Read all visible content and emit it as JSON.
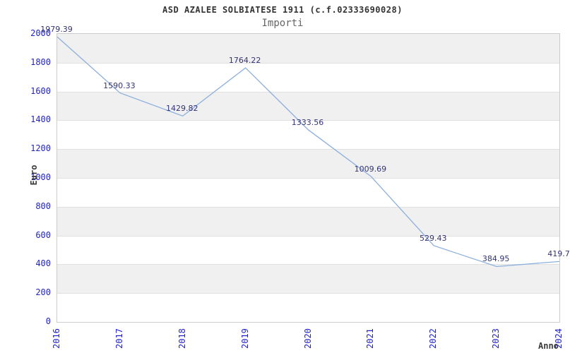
{
  "header": {
    "title": "ASD AZALEE SOLBIATESE 1911 (c.f.02333690028)",
    "subtitle": "Importi"
  },
  "chart_data": {
    "type": "line",
    "title": "ASD AZALEE SOLBIATESE 1911 (c.f.02333690028)",
    "subtitle": "Importi",
    "categories": [
      "2016",
      "2017",
      "2018",
      "2019",
      "2020",
      "2021",
      "2022",
      "2023",
      "2024"
    ],
    "values": [
      1979.39,
      1590.33,
      1429.82,
      1764.22,
      1333.56,
      1009.69,
      529.43,
      384.95,
      419.7
    ],
    "value_labels": [
      "1979.39",
      "1590.33",
      "1429.82",
      "1764.22",
      "1333.56",
      "1009.69",
      "529.43",
      "384.95",
      "419.7"
    ],
    "xlabel": "Anno",
    "ylabel": "Euro",
    "ylim": [
      0,
      2000
    ],
    "ytick_step": 200,
    "grid": "horizontal-bands-alternating",
    "legend": "none",
    "x_tick_rotation": -90,
    "colors": {
      "line": "#8dafdd",
      "tick_labels": "#2222cc",
      "value_labels": "#333377",
      "band_gray": "#f0f0f0",
      "band_white": "#ffffff",
      "gridline": "#e0e0e0",
      "plot_border": "#cccccc",
      "title": "#333333",
      "subtitle": "#666666",
      "axis_titles": "#3a3a3a",
      "background": "#ffffff"
    }
  }
}
